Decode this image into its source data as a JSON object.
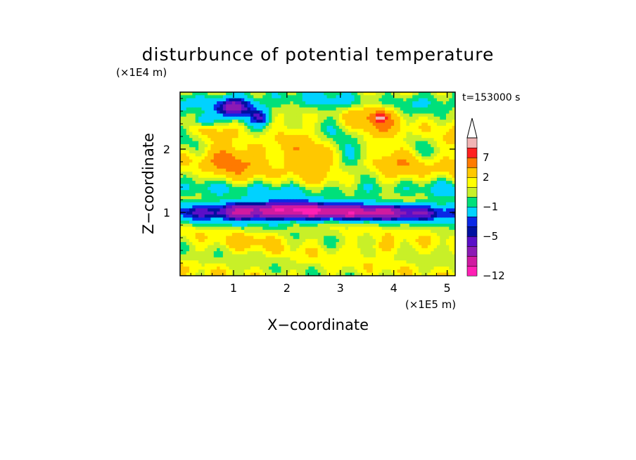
{
  "chart_data": {
    "type": "heatmap",
    "title": "disturbunce of potential temperature",
    "time_label": "t=153000 s",
    "xlabel": "X−coordinate",
    "ylabel": "Z−coordinate",
    "x_unit": "(×1E5 m)",
    "z_unit": "(×1E4 m)",
    "xlim": [
      0,
      5.15
    ],
    "zlim": [
      0,
      2.9
    ],
    "x_ticks": [
      "1",
      "2",
      "3",
      "4",
      "5"
    ],
    "z_ticks": [
      "1",
      "2"
    ],
    "colorbar": {
      "labels": [
        "7",
        "2",
        "−1",
        "−5",
        "−12"
      ],
      "label_values": [
        7,
        2,
        -1,
        -5,
        -12
      ],
      "levels": [
        -12,
        -10,
        -8,
        -6,
        -5,
        -4,
        -3,
        -1,
        0,
        1,
        2,
        4,
        7,
        9
      ],
      "colors": [
        "#ff1fb4",
        "#d01aa0",
        "#8c1ab4",
        "#5a0fc8",
        "#0010a0",
        "#0a28e6",
        "#00d2ff",
        "#00e07a",
        "#c8f028",
        "#ffff00",
        "#ffc800",
        "#ff7a00",
        "#ff2020",
        "#f0b4b4"
      ],
      "extend": "max"
    },
    "features": [
      {
        "x": 1.0,
        "z": 2.65,
        "rx": 0.35,
        "rz": 0.16,
        "v": -5.5
      },
      {
        "x": 0.45,
        "z": 2.45,
        "rx": 0.2,
        "rz": 0.1,
        "v": -4.5
      },
      {
        "x": 1.5,
        "z": 2.5,
        "rx": 0.18,
        "rz": 0.12,
        "v": -3.5
      },
      {
        "x": 3.7,
        "z": 2.55,
        "rx": 0.55,
        "rz": 0.3,
        "v": 4.5
      },
      {
        "x": 3.75,
        "z": 2.5,
        "rx": 0.12,
        "rz": 0.07,
        "v": 7.5
      },
      {
        "x": 1.5,
        "z": 1.95,
        "rx": 0.45,
        "rz": 0.22,
        "v": 3.5
      },
      {
        "x": 0.9,
        "z": 1.85,
        "rx": 0.2,
        "rz": 0.12,
        "v": 3.0
      },
      {
        "x": 3.45,
        "z": 1.9,
        "rx": 0.55,
        "rz": 0.18,
        "v": -1.6
      },
      {
        "x": 4.6,
        "z": 2.2,
        "rx": 0.35,
        "rz": 0.3,
        "v": 1.8
      },
      {
        "x": 1.3,
        "z": 1.05,
        "rx": 0.6,
        "rz": 0.15,
        "v": -4.6
      },
      {
        "x": 3.2,
        "z": 1.0,
        "rx": 1.3,
        "rz": 0.12,
        "v": -4.6
      },
      {
        "x": 2.2,
        "z": 1.05,
        "rx": 0.5,
        "rz": 0.12,
        "v": -4.2
      },
      {
        "x": 1.3,
        "z": 0.55,
        "rx": 0.5,
        "rz": 0.12,
        "v": 2.8
      },
      {
        "x": 3.8,
        "z": 0.45,
        "rx": 0.5,
        "rz": 0.12,
        "v": 2.5
      }
    ]
  }
}
